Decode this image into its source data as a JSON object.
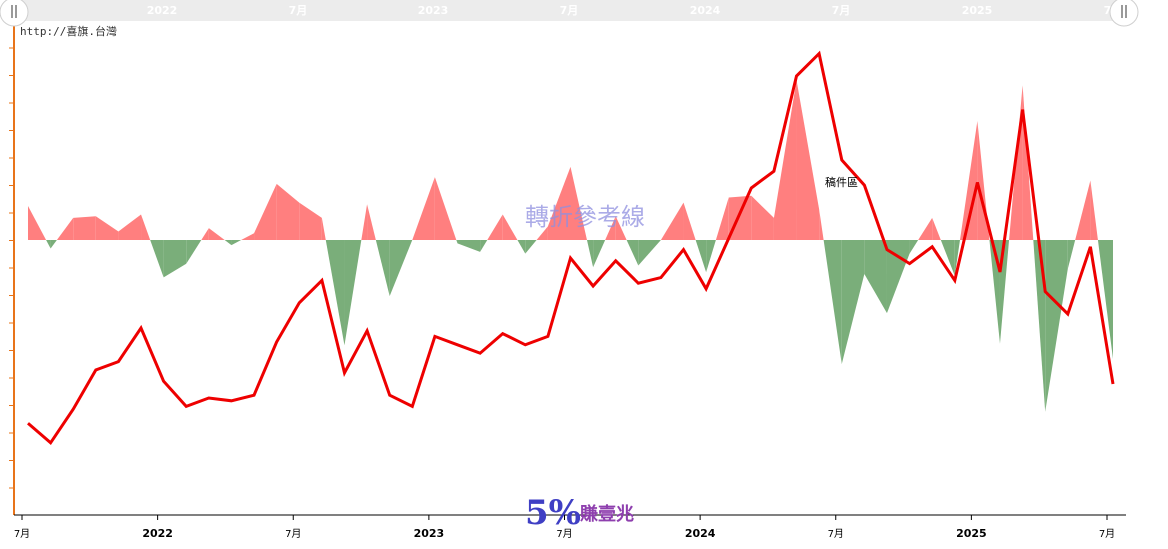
{
  "source_url": "http://喜旗.台灣",
  "watermark": "轉折參考線",
  "annotation": "稿件區",
  "logo": {
    "number": "5%",
    "text": "賺壹兆"
  },
  "navigator": {
    "labels": [
      "2022",
      "7月",
      "2023",
      "7月",
      "2024",
      "7月",
      "2025",
      "7月"
    ]
  },
  "colors": {
    "line": "#ee0000",
    "positive_area": "#ff7f7f",
    "negative_area": "#7aae7a",
    "left_axis": "#e8741a"
  },
  "chart_data": {
    "type": "line",
    "x_tick_labels": [
      "7月",
      "2022",
      "7月",
      "2023",
      "7月",
      "2024",
      "7月",
      "2025",
      "7月"
    ],
    "x_tick_index": [
      0,
      6,
      12,
      18,
      24,
      30,
      36,
      42,
      48
    ],
    "series": [
      {
        "values": [
          16,
          9,
          21,
          35,
          38,
          50,
          31,
          22,
          25,
          24,
          26,
          45,
          59,
          67,
          34,
          49,
          26,
          22,
          47,
          44,
          41,
          48,
          44,
          47,
          75,
          65,
          74,
          66,
          68,
          78,
          64,
          82,
          100,
          106,
          140,
          148,
          110,
          101,
          78,
          73,
          79,
          67,
          102,
          70,
          128,
          63,
          55,
          79,
          30
        ]
      },
      {
        "values": [
          20,
          -5,
          13,
          14,
          5,
          15,
          -22,
          -14,
          7,
          -3,
          4,
          33,
          22,
          13,
          -62,
          21,
          -33,
          0,
          37,
          -2,
          -7,
          15,
          -8,
          8,
          43,
          -16,
          14,
          -15,
          0,
          22,
          -19,
          25,
          26,
          13,
          94,
          18,
          -73,
          -20,
          -43,
          -8,
          13,
          -21,
          70,
          -61,
          91,
          -101,
          -17,
          35,
          -70
        ]
      }
    ]
  }
}
